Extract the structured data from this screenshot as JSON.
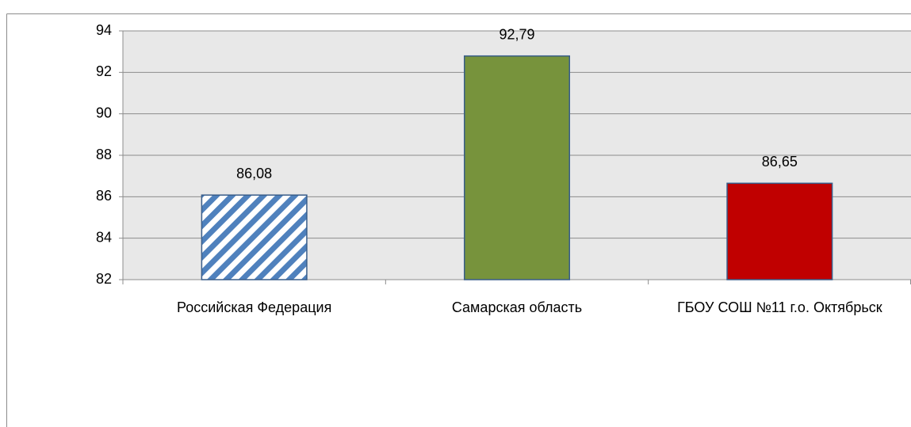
{
  "chart_data": {
    "type": "bar",
    "categories": [
      "Российская Федерация",
      "Самарская область",
      "ГБОУ СОШ №11 г.о. Октябрьск"
    ],
    "values": [
      86.08,
      92.79,
      86.65
    ],
    "value_labels": [
      "86,08",
      "92,79",
      "86,65"
    ],
    "colors": [
      "#4f81bd",
      "#77933c",
      "#c00000"
    ],
    "hatch": [
      true,
      false,
      false
    ],
    "ylim": [
      82,
      94
    ],
    "yticks": [
      82,
      84,
      86,
      88,
      90,
      92,
      94
    ],
    "grid": true
  }
}
